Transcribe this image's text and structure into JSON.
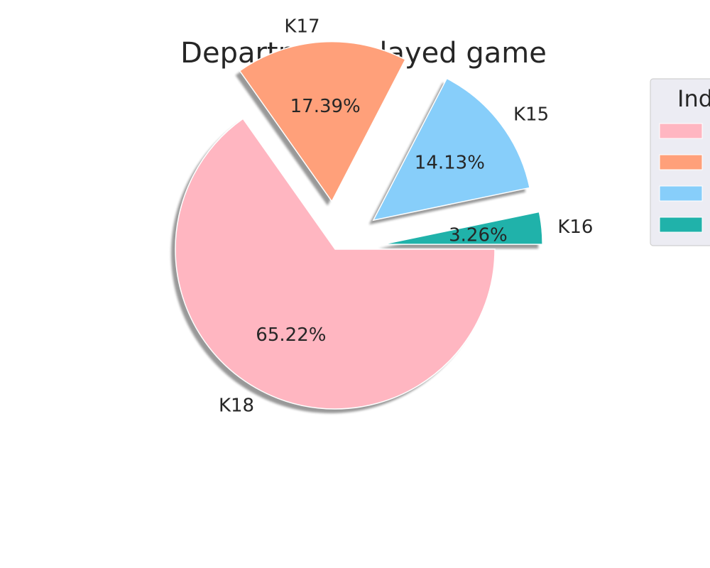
{
  "chart_data": {
    "type": "pie",
    "title": "Department played game",
    "categories": [
      "K18",
      "K17",
      "K15",
      "K16"
    ],
    "values": [
      65.22,
      17.39,
      14.13,
      3.26
    ],
    "percent_labels": [
      "65.22%",
      "17.39%",
      "14.13%",
      "3.26%"
    ],
    "colors": [
      "#ffb6c1",
      "#ffa07a",
      "#87cefa",
      "#20b2aa"
    ],
    "explode": [
      0,
      0.3,
      0.3,
      0.3
    ],
    "shadow": true,
    "start_angle_deg": 0,
    "direction": "clockwise",
    "legend": {
      "title": "Ind",
      "placement": "top-right"
    }
  }
}
